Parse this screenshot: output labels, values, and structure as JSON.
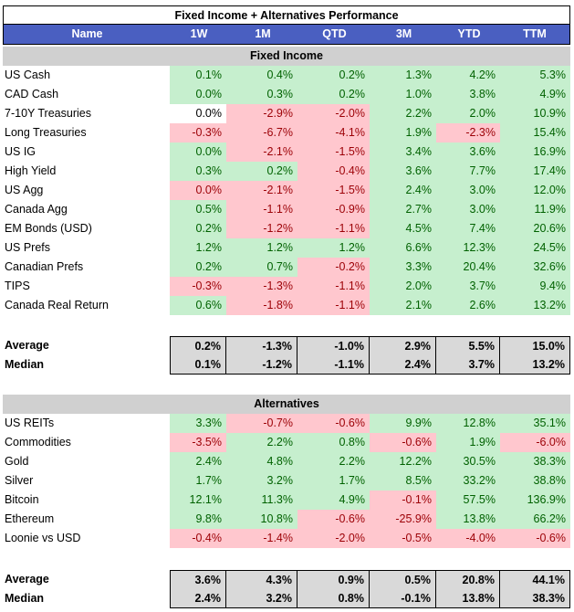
{
  "title": "Fixed Income + Alternatives Performance",
  "columns": [
    "Name",
    "1W",
    "1M",
    "QTD",
    "3M",
    "YTD",
    "TTM"
  ],
  "fixed_income": {
    "label": "Fixed Income",
    "rows": [
      {
        "name": "US Cash",
        "values": [
          "0.1%",
          "0.4%",
          "0.2%",
          "1.3%",
          "4.2%",
          "5.3%"
        ],
        "tones": [
          "g",
          "g",
          "g",
          "g",
          "g",
          "g"
        ]
      },
      {
        "name": "CAD Cash",
        "values": [
          "0.0%",
          "0.3%",
          "0.2%",
          "1.0%",
          "3.8%",
          "4.9%"
        ],
        "tones": [
          "g",
          "g",
          "g",
          "g",
          "g",
          "g"
        ]
      },
      {
        "name": "7-10Y Treasuries",
        "values": [
          "0.0%",
          "-2.9%",
          "-2.0%",
          "2.2%",
          "2.0%",
          "10.9%"
        ],
        "tones": [
          "w",
          "r",
          "r",
          "g",
          "g",
          "g"
        ]
      },
      {
        "name": "Long Treasuries",
        "values": [
          "-0.3%",
          "-6.7%",
          "-4.1%",
          "1.9%",
          "-2.3%",
          "15.4%"
        ],
        "tones": [
          "r",
          "r",
          "r",
          "g",
          "r",
          "g"
        ]
      },
      {
        "name": "US IG",
        "values": [
          "0.0%",
          "-2.1%",
          "-1.5%",
          "3.4%",
          "3.6%",
          "16.9%"
        ],
        "tones": [
          "g",
          "r",
          "r",
          "g",
          "g",
          "g"
        ]
      },
      {
        "name": "High Yield",
        "values": [
          "0.3%",
          "0.2%",
          "-0.4%",
          "3.6%",
          "7.7%",
          "17.4%"
        ],
        "tones": [
          "g",
          "g",
          "r",
          "g",
          "g",
          "g"
        ]
      },
      {
        "name": "US Agg",
        "values": [
          "0.0%",
          "-2.1%",
          "-1.5%",
          "2.4%",
          "3.0%",
          "12.0%"
        ],
        "tones": [
          "r",
          "r",
          "r",
          "g",
          "g",
          "g"
        ]
      },
      {
        "name": "Canada Agg",
        "values": [
          "0.5%",
          "-1.1%",
          "-0.9%",
          "2.7%",
          "3.0%",
          "11.9%"
        ],
        "tones": [
          "g",
          "r",
          "r",
          "g",
          "g",
          "g"
        ]
      },
      {
        "name": "EM Bonds (USD)",
        "values": [
          "0.2%",
          "-1.2%",
          "-1.1%",
          "4.5%",
          "7.4%",
          "20.6%"
        ],
        "tones": [
          "g",
          "r",
          "r",
          "g",
          "g",
          "g"
        ]
      },
      {
        "name": "US Prefs",
        "values": [
          "1.2%",
          "1.2%",
          "1.2%",
          "6.6%",
          "12.3%",
          "24.5%"
        ],
        "tones": [
          "g",
          "g",
          "g",
          "g",
          "g",
          "g"
        ]
      },
      {
        "name": "Canadian Prefs",
        "values": [
          "0.2%",
          "0.7%",
          "-0.2%",
          "3.3%",
          "20.4%",
          "32.6%"
        ],
        "tones": [
          "g",
          "g",
          "r",
          "g",
          "g",
          "g"
        ]
      },
      {
        "name": "TIPS",
        "values": [
          "-0.3%",
          "-1.3%",
          "-1.1%",
          "2.0%",
          "3.7%",
          "9.4%"
        ],
        "tones": [
          "r",
          "r",
          "r",
          "g",
          "g",
          "g"
        ]
      },
      {
        "name": "Canada Real Return",
        "values": [
          "0.6%",
          "-1.8%",
          "-1.1%",
          "2.1%",
          "2.6%",
          "13.2%"
        ],
        "tones": [
          "g",
          "r",
          "r",
          "g",
          "g",
          "g"
        ]
      }
    ],
    "average": {
      "name": "Average",
      "values": [
        "0.2%",
        "-1.3%",
        "-1.0%",
        "2.9%",
        "5.5%",
        "15.0%"
      ]
    },
    "median": {
      "name": "Median",
      "values": [
        "0.1%",
        "-1.2%",
        "-1.1%",
        "2.4%",
        "3.7%",
        "13.2%"
      ]
    }
  },
  "alternatives": {
    "label": "Alternatives",
    "rows": [
      {
        "name": "US REITs",
        "values": [
          "3.3%",
          "-0.7%",
          "-0.6%",
          "9.9%",
          "12.8%",
          "35.1%"
        ],
        "tones": [
          "g",
          "r",
          "r",
          "g",
          "g",
          "g"
        ]
      },
      {
        "name": "Commodities",
        "values": [
          "-3.5%",
          "2.2%",
          "0.8%",
          "-0.6%",
          "1.9%",
          "-6.0%"
        ],
        "tones": [
          "r",
          "g",
          "g",
          "r",
          "g",
          "r"
        ]
      },
      {
        "name": "Gold",
        "values": [
          "2.4%",
          "4.8%",
          "2.2%",
          "12.2%",
          "30.5%",
          "38.3%"
        ],
        "tones": [
          "g",
          "g",
          "g",
          "g",
          "g",
          "g"
        ]
      },
      {
        "name": "Silver",
        "values": [
          "1.7%",
          "3.2%",
          "1.7%",
          "8.5%",
          "33.2%",
          "38.8%"
        ],
        "tones": [
          "g",
          "g",
          "g",
          "g",
          "g",
          "g"
        ]
      },
      {
        "name": "Bitcoin",
        "values": [
          "12.1%",
          "11.3%",
          "4.9%",
          "-0.1%",
          "57.5%",
          "136.9%"
        ],
        "tones": [
          "g",
          "g",
          "g",
          "r",
          "g",
          "g"
        ]
      },
      {
        "name": "Ethereum",
        "values": [
          "9.8%",
          "10.8%",
          "-0.6%",
          "-25.9%",
          "13.8%",
          "66.2%"
        ],
        "tones": [
          "g",
          "g",
          "r",
          "r",
          "g",
          "g"
        ]
      },
      {
        "name": "Loonie vs USD",
        "values": [
          "-0.4%",
          "-1.4%",
          "-2.0%",
          "-0.5%",
          "-4.0%",
          "-0.6%"
        ],
        "tones": [
          "r",
          "r",
          "r",
          "r",
          "r",
          "r"
        ]
      }
    ],
    "average": {
      "name": "Average",
      "values": [
        "3.6%",
        "4.3%",
        "0.9%",
        "0.5%",
        "20.8%",
        "44.1%"
      ]
    },
    "median": {
      "name": "Median",
      "values": [
        "2.4%",
        "3.2%",
        "0.8%",
        "-0.1%",
        "13.8%",
        "38.3%"
      ]
    }
  }
}
